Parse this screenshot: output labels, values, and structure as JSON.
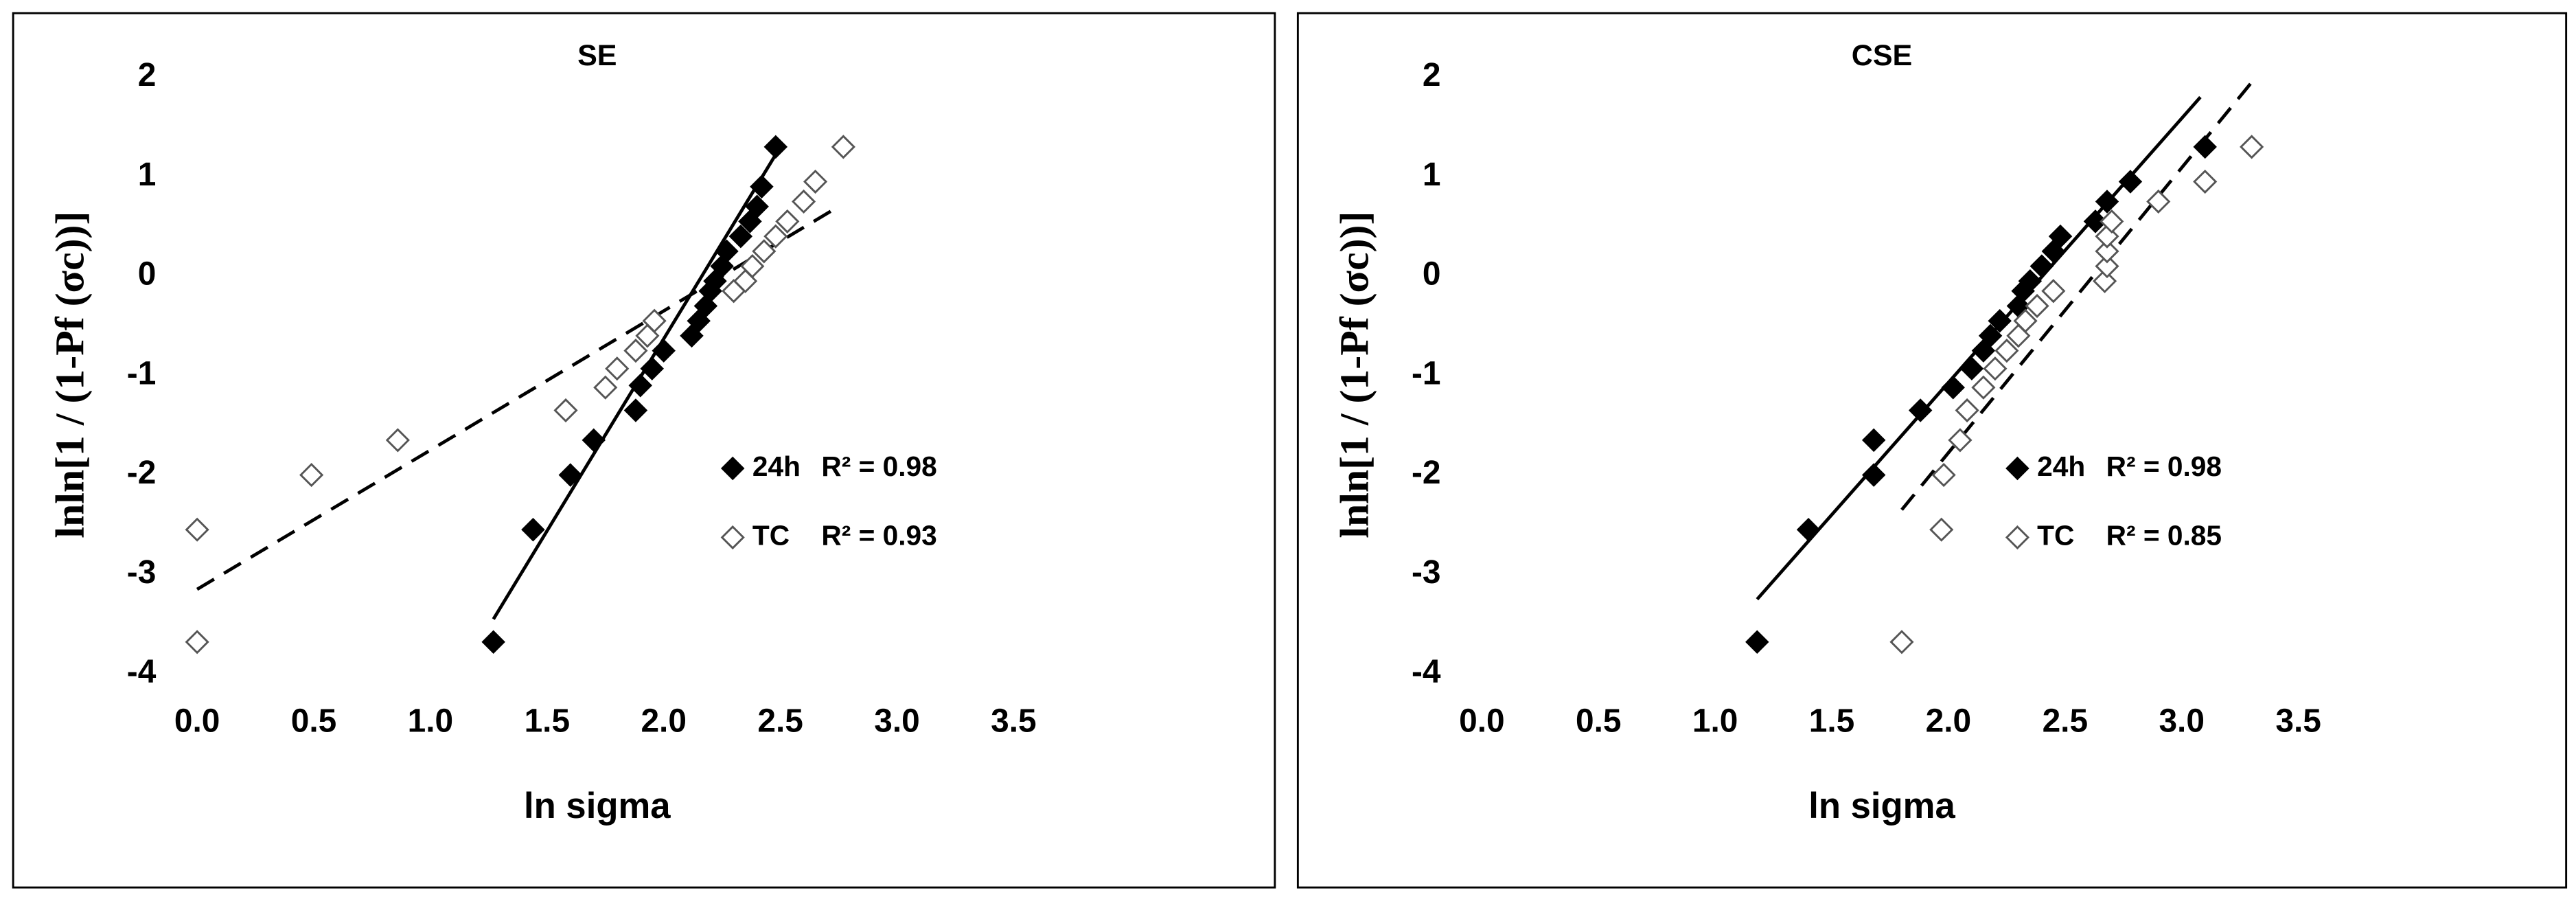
{
  "chart_data": [
    {
      "type": "scatter",
      "title": "SE",
      "xlabel": "ln sigma",
      "ylabel": "lnln[1 / (1-Pf (σc))]",
      "xlim": [
        0,
        3.5
      ],
      "ylim": [
        -4,
        2
      ],
      "xticks": [
        {
          "value": 0,
          "label": "0.0"
        },
        0.5,
        {
          "value": 1,
          "label": "1.0"
        },
        1.5,
        {
          "value": 2,
          "label": "2.0"
        },
        2.5,
        {
          "value": 3,
          "label": "3.0"
        },
        3.5
      ],
      "yticks": [
        -4,
        -3,
        -2,
        -1,
        0,
        1,
        2
      ],
      "series": [
        {
          "name": "24h",
          "r2_label": "R² = 0.98",
          "marker": "filled",
          "color": "#000000",
          "line_style": "solid",
          "x": [
            1.27,
            1.44,
            1.6,
            1.7,
            1.88,
            1.9,
            1.95,
            2.0,
            2.12,
            2.15,
            2.18,
            2.2,
            2.22,
            2.25,
            2.27,
            2.33,
            2.37,
            2.4,
            2.42,
            2.48
          ],
          "values": [
            -3.68,
            -2.55,
            -2.0,
            -1.65,
            -1.35,
            -1.1,
            -0.93,
            -0.75,
            -0.6,
            -0.45,
            -0.3,
            -0.15,
            -0.05,
            0.1,
            0.25,
            0.4,
            0.55,
            0.7,
            0.9,
            1.3
          ],
          "trendline": {
            "x": [
              1.27,
              2.5
            ],
            "values": [
              -3.45,
              1.3
            ]
          }
        },
        {
          "name": "TC",
          "r2_label": "R² = 0.93",
          "marker": "open",
          "color": "#555555",
          "line_style": "dashed",
          "x": [
            0,
            0,
            0.49,
            0.86,
            1.58,
            1.75,
            1.8,
            1.88,
            1.93,
            1.96,
            2.3,
            2.35,
            2.38,
            2.43,
            2.48,
            2.53,
            2.6,
            2.65,
            2.77
          ],
          "values": [
            -3.68,
            -2.55,
            -2.0,
            -1.65,
            -1.35,
            -1.12,
            -0.93,
            -0.75,
            -0.6,
            -0.45,
            -0.15,
            -0.05,
            0.1,
            0.25,
            0.4,
            0.55,
            0.75,
            0.95,
            1.3
          ],
          "trendline": {
            "x": [
              0,
              2.75
            ],
            "values": [
              -3.15,
              0.7
            ]
          }
        }
      ]
    },
    {
      "type": "scatter",
      "title": "CSE",
      "xlabel": "ln sigma",
      "ylabel": "lnln[1 / (1-Pf (σc))]",
      "xlim": [
        0,
        3.5
      ],
      "ylim": [
        -4,
        2
      ],
      "xticks": [
        {
          "value": 0,
          "label": "0.0"
        },
        0.5,
        {
          "value": 1,
          "label": "1.0"
        },
        1.5,
        {
          "value": 2,
          "label": "2.0"
        },
        2.5,
        {
          "value": 3,
          "label": "3.0"
        },
        3.5
      ],
      "yticks": [
        -4,
        -3,
        -2,
        -1,
        0,
        1,
        2
      ],
      "series": [
        {
          "name": "24h",
          "r2_label": "R² = 0.98",
          "marker": "filled",
          "color": "#000000",
          "line_style": "solid",
          "x": [
            1.18,
            1.4,
            1.68,
            1.68,
            1.88,
            2.02,
            2.1,
            2.15,
            2.18,
            2.22,
            2.3,
            2.32,
            2.35,
            2.4,
            2.45,
            2.48,
            2.63,
            2.68,
            2.78,
            3.1
          ],
          "values": [
            -3.68,
            -2.55,
            -2.0,
            -1.65,
            -1.35,
            -1.12,
            -0.93,
            -0.75,
            -0.6,
            -0.45,
            -0.3,
            -0.15,
            -0.05,
            0.1,
            0.25,
            0.4,
            0.55,
            0.75,
            0.95,
            1.3
          ],
          "trendline": {
            "x": [
              1.18,
              3.08
            ],
            "values": [
              -3.25,
              1.8
            ]
          }
        },
        {
          "name": "TC",
          "r2_label": "R² = 0.85",
          "marker": "open",
          "color": "#555555",
          "line_style": "dashed",
          "x": [
            1.8,
            1.97,
            1.98,
            2.05,
            2.08,
            2.15,
            2.2,
            2.25,
            2.3,
            2.33,
            2.38,
            2.45,
            2.67,
            2.68,
            2.68,
            2.68,
            2.7,
            2.9,
            3.1,
            3.3
          ],
          "values": [
            -3.68,
            -2.55,
            -2.0,
            -1.65,
            -1.35,
            -1.12,
            -0.93,
            -0.75,
            -0.6,
            -0.45,
            -0.3,
            -0.15,
            -0.05,
            0.1,
            0.25,
            0.4,
            0.55,
            0.75,
            0.95,
            1.3
          ],
          "trendline": {
            "x": [
              1.8,
              3.3
            ],
            "values": [
              -2.35,
              1.95
            ]
          }
        }
      ]
    }
  ]
}
